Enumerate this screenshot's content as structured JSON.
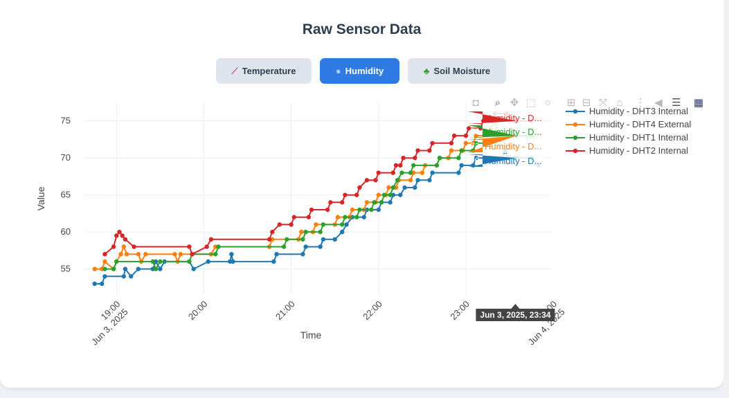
{
  "page": {
    "title": "Raw Sensor Data"
  },
  "tabs": [
    {
      "label": "Temperature",
      "icon": "thermometer-icon",
      "active": false
    },
    {
      "label": "Humidity",
      "icon": "droplet-icon",
      "active": true
    },
    {
      "label": "Soil Moisture",
      "icon": "seedling-icon",
      "active": false
    }
  ],
  "modebar": {
    "buttons": [
      "camera-icon",
      "zoom-icon",
      "pan-icon",
      "box-select-icon",
      "lasso-icon",
      "zoom-in-icon",
      "zoom-out-icon",
      "autoscale-icon",
      "reset-axes-icon",
      "spike-lines-icon",
      "hover-closest-icon",
      "hover-compare-icon",
      "plotly-logo-icon"
    ]
  },
  "chart_data": {
    "type": "line",
    "xlabel": "Time",
    "ylabel": "Value",
    "xlim": [
      "2025-06-03 18:38",
      "2025-06-03 23:59"
    ],
    "ylim": [
      51.5,
      77.5
    ],
    "x_ticks": [
      {
        "t": "2025-06-03 19:00",
        "label": "19:00",
        "sub": "Jun 3, 2025"
      },
      {
        "t": "2025-06-03 20:00",
        "label": "20:00",
        "sub": ""
      },
      {
        "t": "2025-06-03 21:00",
        "label": "21:00",
        "sub": ""
      },
      {
        "t": "2025-06-03 22:00",
        "label": "22:00",
        "sub": ""
      },
      {
        "t": "2025-06-03 23:00",
        "label": "23:00",
        "sub": ""
      },
      {
        "t": "2025-06-04 00:00",
        "label": "00:00",
        "sub": "Jun 4, 2025"
      }
    ],
    "y_ticks": [
      55,
      60,
      65,
      70,
      75
    ],
    "grid": true,
    "legend_position": "right",
    "series": [
      {
        "name": "Humidity - DHT3 Internal",
        "color": "#1f77b4",
        "points": [
          [
            "2025-06-03 18:45",
            53
          ],
          [
            "2025-06-03 18:50",
            53
          ],
          [
            "2025-06-03 18:52",
            54
          ],
          [
            "2025-06-03 19:05",
            54
          ],
          [
            "2025-06-03 19:06",
            55
          ],
          [
            "2025-06-03 19:10",
            54
          ],
          [
            "2025-06-03 19:15",
            55
          ],
          [
            "2025-06-03 19:25",
            55
          ],
          [
            "2025-06-03 19:27",
            56
          ],
          [
            "2025-06-03 19:30",
            55
          ],
          [
            "2025-06-03 19:33",
            56
          ],
          [
            "2025-06-03 19:50",
            56
          ],
          [
            "2025-06-03 19:53",
            55
          ],
          [
            "2025-06-03 20:03",
            56
          ],
          [
            "2025-06-03 20:18",
            56
          ],
          [
            "2025-06-03 20:19",
            57
          ],
          [
            "2025-06-03 20:20",
            56
          ],
          [
            "2025-06-03 20:48",
            56
          ],
          [
            "2025-06-03 20:50",
            57
          ],
          [
            "2025-06-03 21:08",
            57
          ],
          [
            "2025-06-03 21:10",
            58
          ],
          [
            "2025-06-03 21:20",
            58
          ],
          [
            "2025-06-03 21:22",
            59
          ],
          [
            "2025-06-03 21:30",
            59
          ],
          [
            "2025-06-03 21:35",
            60
          ],
          [
            "2025-06-03 21:38",
            61
          ],
          [
            "2025-06-03 21:42",
            62
          ],
          [
            "2025-06-03 21:50",
            62
          ],
          [
            "2025-06-03 21:52",
            63
          ],
          [
            "2025-06-03 22:00",
            63
          ],
          [
            "2025-06-03 22:02",
            64
          ],
          [
            "2025-06-03 22:08",
            64
          ],
          [
            "2025-06-03 22:10",
            65
          ],
          [
            "2025-06-03 22:15",
            65
          ],
          [
            "2025-06-03 22:18",
            66
          ],
          [
            "2025-06-03 22:25",
            66
          ],
          [
            "2025-06-03 22:27",
            67
          ],
          [
            "2025-06-03 22:35",
            67
          ],
          [
            "2025-06-03 22:37",
            68
          ],
          [
            "2025-06-03 22:55",
            68
          ],
          [
            "2025-06-03 22:57",
            69
          ],
          [
            "2025-06-03 23:05",
            69
          ],
          [
            "2025-06-03 23:07",
            70
          ],
          [
            "2025-06-03 23:25",
            70
          ],
          [
            "2025-06-03 23:27",
            71
          ],
          [
            "2025-06-03 23:29",
            70
          ],
          [
            "2025-06-03 23:34",
            70
          ],
          [
            "2025-06-03 23:45",
            70
          ],
          [
            "2025-06-03 23:50",
            69
          ]
        ]
      },
      {
        "name": "Humidity - DHT4 External",
        "color": "#ff7f0e",
        "points": [
          [
            "2025-06-03 18:45",
            55
          ],
          [
            "2025-06-03 18:50",
            55
          ],
          [
            "2025-06-03 18:52",
            56
          ],
          [
            "2025-06-03 18:58",
            55
          ],
          [
            "2025-06-03 19:00",
            56
          ],
          [
            "2025-06-03 19:03",
            57
          ],
          [
            "2025-06-03 19:05",
            58
          ],
          [
            "2025-06-03 19:07",
            57
          ],
          [
            "2025-06-03 19:15",
            57
          ],
          [
            "2025-06-03 19:17",
            56
          ],
          [
            "2025-06-03 19:20",
            57
          ],
          [
            "2025-06-03 19:40",
            57
          ],
          [
            "2025-06-03 19:42",
            56
          ],
          [
            "2025-06-03 19:44",
            57
          ],
          [
            "2025-06-03 20:05",
            57
          ],
          [
            "2025-06-03 20:08",
            58
          ],
          [
            "2025-06-03 20:45",
            58
          ],
          [
            "2025-06-03 20:47",
            59
          ],
          [
            "2025-06-03 21:05",
            59
          ],
          [
            "2025-06-03 21:07",
            60
          ],
          [
            "2025-06-03 21:15",
            60
          ],
          [
            "2025-06-03 21:17",
            61
          ],
          [
            "2025-06-03 21:30",
            61
          ],
          [
            "2025-06-03 21:32",
            62
          ],
          [
            "2025-06-03 21:40",
            62
          ],
          [
            "2025-06-03 21:42",
            63
          ],
          [
            "2025-06-03 21:50",
            63
          ],
          [
            "2025-06-03 21:52",
            64
          ],
          [
            "2025-06-03 21:58",
            64
          ],
          [
            "2025-06-03 22:00",
            65
          ],
          [
            "2025-06-03 22:05",
            65
          ],
          [
            "2025-06-03 22:07",
            66
          ],
          [
            "2025-06-03 22:12",
            66
          ],
          [
            "2025-06-03 22:14",
            67
          ],
          [
            "2025-06-03 22:22",
            67
          ],
          [
            "2025-06-03 22:24",
            68
          ],
          [
            "2025-06-03 22:30",
            68
          ],
          [
            "2025-06-03 22:32",
            69
          ],
          [
            "2025-06-03 22:40",
            69
          ],
          [
            "2025-06-03 22:42",
            70
          ],
          [
            "2025-06-03 22:48",
            70
          ],
          [
            "2025-06-03 22:50",
            71
          ],
          [
            "2025-06-03 22:58",
            71
          ],
          [
            "2025-06-03 23:00",
            72
          ],
          [
            "2025-06-03 23:05",
            72
          ],
          [
            "2025-06-03 23:07",
            73
          ],
          [
            "2025-06-03 23:15",
            73
          ],
          [
            "2025-06-03 23:17",
            74
          ],
          [
            "2025-06-03 23:20",
            75
          ],
          [
            "2025-06-03 23:22",
            73
          ],
          [
            "2025-06-03 23:34",
            73
          ],
          [
            "2025-06-03 23:45",
            73
          ]
        ]
      },
      {
        "name": "Humidity - DHT1 Internal",
        "color": "#2ca02c",
        "points": [
          [
            "2025-06-03 18:52",
            55
          ],
          [
            "2025-06-03 18:58",
            55
          ],
          [
            "2025-06-03 19:00",
            56
          ],
          [
            "2025-06-03 19:25",
            56
          ],
          [
            "2025-06-03 19:27",
            55
          ],
          [
            "2025-06-03 19:30",
            56
          ],
          [
            "2025-06-03 19:50",
            56
          ],
          [
            "2025-06-03 19:52",
            57
          ],
          [
            "2025-06-03 20:08",
            57
          ],
          [
            "2025-06-03 20:10",
            58
          ],
          [
            "2025-06-03 20:55",
            58
          ],
          [
            "2025-06-03 20:57",
            59
          ],
          [
            "2025-06-03 21:08",
            59
          ],
          [
            "2025-06-03 21:10",
            60
          ],
          [
            "2025-06-03 21:20",
            60
          ],
          [
            "2025-06-03 21:22",
            61
          ],
          [
            "2025-06-03 21:35",
            61
          ],
          [
            "2025-06-03 21:37",
            62
          ],
          [
            "2025-06-03 21:45",
            62
          ],
          [
            "2025-06-03 21:47",
            63
          ],
          [
            "2025-06-03 21:55",
            63
          ],
          [
            "2025-06-03 21:57",
            64
          ],
          [
            "2025-06-03 22:02",
            64
          ],
          [
            "2025-06-03 22:04",
            65
          ],
          [
            "2025-06-03 22:08",
            65
          ],
          [
            "2025-06-03 22:10",
            66
          ],
          [
            "2025-06-03 22:13",
            67
          ],
          [
            "2025-06-03 22:16",
            68
          ],
          [
            "2025-06-03 22:22",
            68
          ],
          [
            "2025-06-03 22:24",
            69
          ],
          [
            "2025-06-03 22:40",
            69
          ],
          [
            "2025-06-03 22:42",
            70
          ],
          [
            "2025-06-03 22:55",
            70
          ],
          [
            "2025-06-03 22:57",
            71
          ],
          [
            "2025-06-03 23:05",
            71
          ],
          [
            "2025-06-03 23:07",
            72
          ],
          [
            "2025-06-03 23:20",
            72
          ],
          [
            "2025-06-03 23:22",
            73
          ],
          [
            "2025-06-03 23:34",
            73
          ],
          [
            "2025-06-03 23:45",
            73
          ]
        ]
      },
      {
        "name": "Humidity - DHT2 Internal",
        "color": "#d62728",
        "points": [
          [
            "2025-06-03 18:52",
            57
          ],
          [
            "2025-06-03 18:58",
            58
          ],
          [
            "2025-06-03 19:00",
            59.5
          ],
          [
            "2025-06-03 19:02",
            60
          ],
          [
            "2025-06-03 19:04",
            59.5
          ],
          [
            "2025-06-03 19:06",
            59
          ],
          [
            "2025-06-03 19:12",
            58
          ],
          [
            "2025-06-03 19:50",
            58
          ],
          [
            "2025-06-03 19:52",
            57
          ],
          [
            "2025-06-03 20:02",
            58
          ],
          [
            "2025-06-03 20:05",
            59
          ],
          [
            "2025-06-03 20:45",
            59
          ],
          [
            "2025-06-03 20:47",
            60
          ],
          [
            "2025-06-03 20:52",
            61
          ],
          [
            "2025-06-03 21:00",
            61
          ],
          [
            "2025-06-03 21:02",
            62
          ],
          [
            "2025-06-03 21:12",
            62
          ],
          [
            "2025-06-03 21:14",
            63
          ],
          [
            "2025-06-03 21:25",
            63
          ],
          [
            "2025-06-03 21:27",
            64
          ],
          [
            "2025-06-03 21:35",
            64
          ],
          [
            "2025-06-03 21:37",
            65
          ],
          [
            "2025-06-03 21:45",
            65
          ],
          [
            "2025-06-03 21:47",
            66
          ],
          [
            "2025-06-03 21:52",
            67
          ],
          [
            "2025-06-03 21:58",
            67
          ],
          [
            "2025-06-03 22:00",
            68
          ],
          [
            "2025-06-03 22:10",
            68
          ],
          [
            "2025-06-03 22:12",
            69
          ],
          [
            "2025-06-03 22:15",
            69
          ],
          [
            "2025-06-03 22:17",
            70
          ],
          [
            "2025-06-03 22:25",
            70
          ],
          [
            "2025-06-03 22:27",
            71
          ],
          [
            "2025-06-03 22:35",
            71
          ],
          [
            "2025-06-03 22:37",
            72
          ],
          [
            "2025-06-03 22:50",
            72
          ],
          [
            "2025-06-03 22:52",
            73
          ],
          [
            "2025-06-03 23:00",
            73
          ],
          [
            "2025-06-03 23:02",
            74
          ],
          [
            "2025-06-03 23:10",
            74
          ],
          [
            "2025-06-03 23:12",
            75
          ],
          [
            "2025-06-03 23:18",
            75
          ],
          [
            "2025-06-03 23:20",
            76
          ],
          [
            "2025-06-03 23:28",
            76
          ],
          [
            "2025-06-03 23:30",
            75
          ],
          [
            "2025-06-03 23:34",
            75
          ],
          [
            "2025-06-03 23:45",
            75
          ]
        ]
      }
    ],
    "hover": {
      "time": "2025-06-03 23:34",
      "label": "Jun 3, 2025, 23:34",
      "items": [
        {
          "value": "75",
          "text": "Humidity - D...",
          "color": "#d62728",
          "y": 75
        },
        {
          "value": "73",
          "text": "Humidity - D...",
          "color": "#2ca02c",
          "y": 73
        },
        {
          "value": "73",
          "text": "Humidity - D...",
          "color": "#ff7f0e",
          "y": 73
        },
        {
          "value": "70",
          "text": "Humidity - D...",
          "color": "#1f77b4",
          "y": 70
        }
      ]
    }
  }
}
